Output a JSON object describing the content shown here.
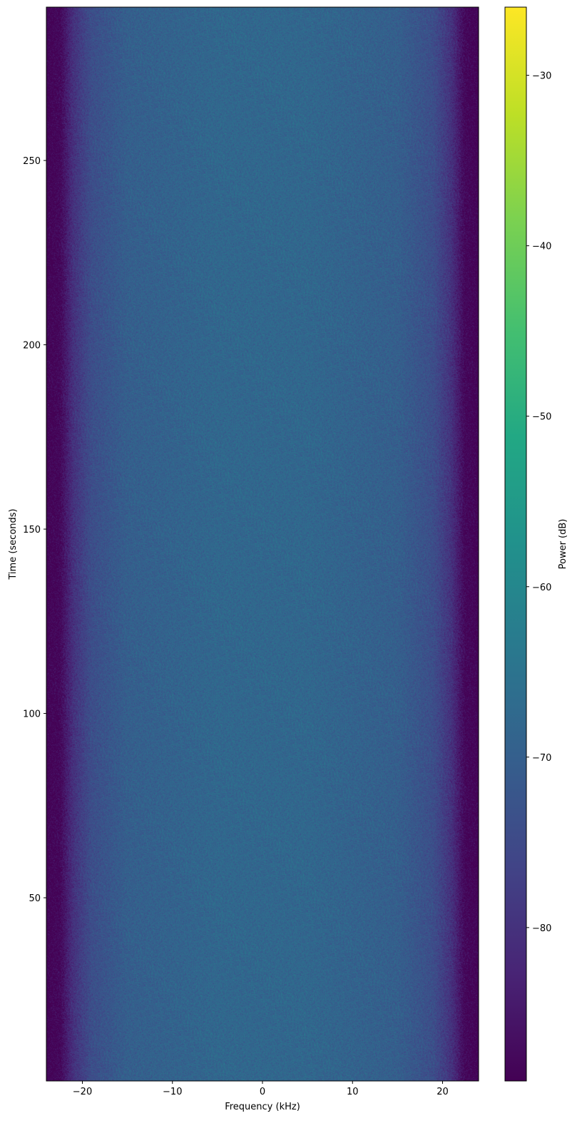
{
  "chart_data": {
    "type": "heatmap",
    "title": "",
    "xlabel": "Frequency (kHz)",
    "ylabel": "Time (seconds)",
    "xlim": [
      -24,
      24
    ],
    "ylim": [
      0.3,
      291.6
    ],
    "xticks": [
      -20,
      -10,
      0,
      10,
      20
    ],
    "yticks": [
      50,
      100,
      150,
      200,
      250
    ],
    "colormap": "viridis",
    "colorbar": {
      "label": "Power (dB)",
      "range": [
        -89,
        -26
      ],
      "ticks": [
        -80,
        -70,
        -60,
        -50,
        -40,
        -30
      ]
    },
    "mean_power_profile": {
      "frequency_khz": [
        -24,
        -22.5,
        -21,
        -19,
        -15,
        -5,
        0,
        5,
        15,
        19,
        21,
        22.5,
        24
      ],
      "power_db": [
        -89,
        -88,
        -80,
        -74,
        -70,
        -68,
        -68,
        -68,
        -70,
        -74,
        -80,
        -88,
        -89
      ]
    },
    "noise_spread_db": 4,
    "grid": false
  }
}
